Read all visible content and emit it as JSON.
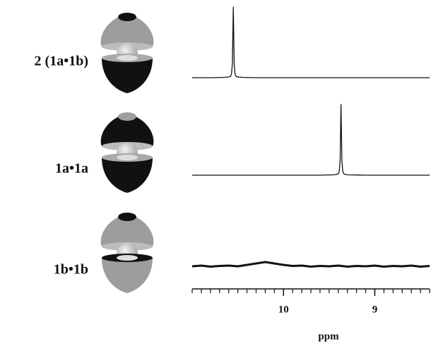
{
  "chart_data": [
    {
      "type": "line",
      "label": "2 (1a•1b)",
      "xlim": [
        11.0,
        8.4
      ],
      "ylim": [
        0,
        100
      ],
      "x": [
        11.0,
        10.8,
        10.65,
        10.6,
        10.58,
        10.57,
        10.56,
        10.55,
        10.54,
        10.53,
        10.52,
        10.5,
        10.45,
        10.3,
        10.0,
        9.5,
        9.0,
        8.4
      ],
      "values": [
        0,
        0,
        0.5,
        1,
        2,
        5,
        20,
        100,
        20,
        5,
        2,
        1,
        0.5,
        0,
        0,
        0,
        0,
        0
      ]
    },
    {
      "type": "line",
      "label": "1a•1a",
      "xlim": [
        11.0,
        8.4
      ],
      "ylim": [
        0,
        100
      ],
      "x": [
        11.0,
        10.5,
        10.0,
        9.6,
        9.45,
        9.42,
        9.4,
        9.39,
        9.38,
        9.37,
        9.36,
        9.35,
        9.34,
        9.32,
        9.29,
        9.1,
        8.8,
        8.4
      ],
      "values": [
        0,
        0,
        0,
        0,
        0.5,
        1,
        2,
        5,
        20,
        100,
        20,
        5,
        2,
        1,
        0.5,
        0,
        0,
        0
      ]
    },
    {
      "type": "line",
      "label": "1b•1b",
      "xlim": [
        11.0,
        8.4
      ],
      "ylim": [
        0,
        100
      ],
      "x": [
        11.0,
        10.9,
        10.8,
        10.7,
        10.6,
        10.5,
        10.4,
        10.3,
        10.2,
        10.1,
        10.0,
        9.9,
        9.8,
        9.7,
        9.6,
        9.5,
        9.4,
        9.3,
        9.2,
        9.1,
        9.0,
        8.9,
        8.8,
        8.7,
        8.6,
        8.5,
        8.4
      ],
      "values": [
        1,
        2,
        0.5,
        1.5,
        2,
        1,
        3,
        5,
        7,
        5,
        3,
        1.5,
        2,
        0.5,
        1.5,
        1,
        2,
        0.5,
        1.5,
        1,
        2,
        0.5,
        1.5,
        1,
        2,
        0.5,
        1.5
      ],
      "xticks": [
        10,
        9
      ],
      "minor_xticks": [
        11.0,
        10.9,
        10.8,
        10.7,
        10.6,
        10.5,
        10.4,
        10.3,
        10.2,
        10.1,
        10.0,
        9.9,
        9.8,
        9.7,
        9.6,
        9.5,
        9.4,
        9.3,
        9.2,
        9.1,
        9.0,
        8.9,
        8.8,
        8.7,
        8.6,
        8.5,
        8.4
      ],
      "xlabel": "ppm"
    }
  ]
}
